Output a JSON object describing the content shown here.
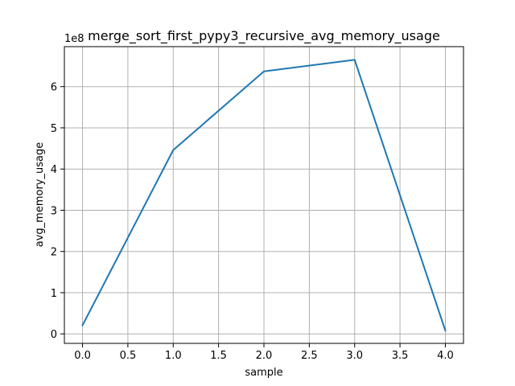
{
  "chart_data": {
    "type": "line",
    "title": "merge_sort_first_pypy3_recursive_avg_memory_usage",
    "xlabel": "sample",
    "ylabel": "avg_memory_usage",
    "y_offset_label": "1e8",
    "grid": true,
    "xlim": [
      -0.2,
      4.2
    ],
    "ylim": [
      -0.23,
      6.97
    ],
    "x_ticks": [
      0.0,
      0.5,
      1.0,
      1.5,
      2.0,
      2.5,
      3.0,
      3.5,
      4.0
    ],
    "x_tick_labels": [
      "0.0",
      "0.5",
      "1.0",
      "1.5",
      "2.0",
      "2.5",
      "3.0",
      "3.5",
      "4.0"
    ],
    "y_ticks": [
      0,
      1,
      2,
      3,
      4,
      5,
      6
    ],
    "y_tick_labels": [
      "0",
      "1",
      "2",
      "3",
      "4",
      "5",
      "6"
    ],
    "series": [
      {
        "name": "avg_memory_usage",
        "color": "#1f77b4",
        "x": [
          0,
          1,
          2,
          3,
          4
        ],
        "values": [
          0.21,
          4.46,
          6.37,
          6.65,
          0.08
        ]
      }
    ]
  }
}
